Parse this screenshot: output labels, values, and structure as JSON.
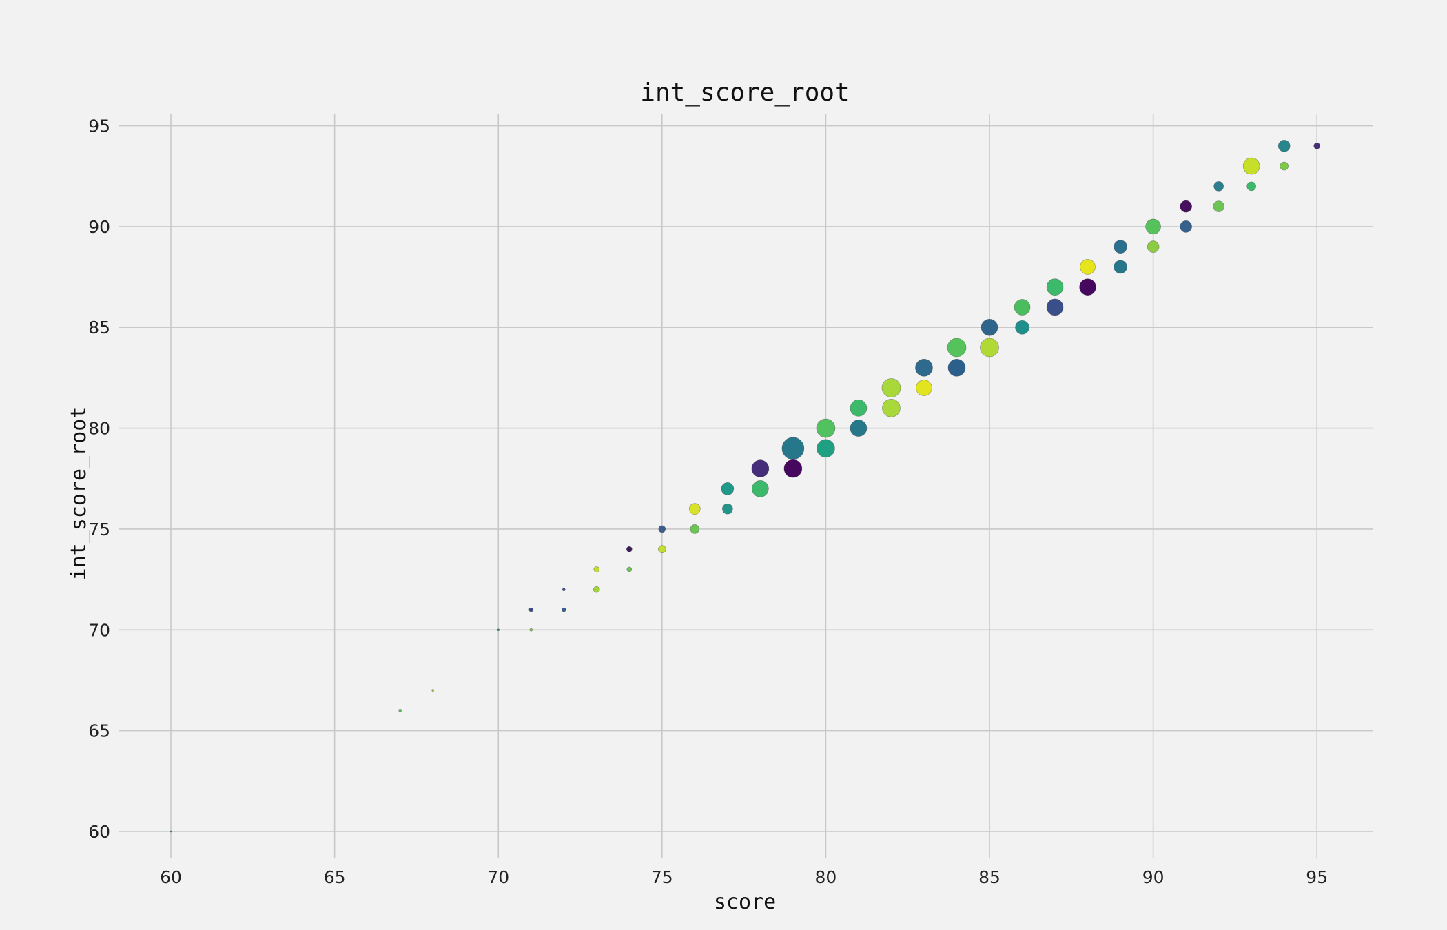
{
  "chart_data": {
    "type": "scatter",
    "title": "int_score_root",
    "xlabel": "score",
    "ylabel": "int_score_root",
    "xlim": [
      58.4,
      96.7
    ],
    "ylim": [
      58.7,
      95.6
    ],
    "xticks": [
      60,
      65,
      70,
      75,
      80,
      85,
      90,
      95
    ],
    "yticks": [
      60,
      65,
      70,
      75,
      80,
      85,
      90,
      95
    ],
    "grid": true,
    "legend": "none",
    "points": [
      {
        "x": 60,
        "y": 60,
        "size": 1,
        "color": "#2a9a82"
      },
      {
        "x": 67,
        "y": 66,
        "size": 2,
        "color": "#5cc05c"
      },
      {
        "x": 68,
        "y": 67,
        "size": 1.5,
        "color": "#a0d43c"
      },
      {
        "x": 70,
        "y": 70,
        "size": 1.5,
        "color": "#2a9a82"
      },
      {
        "x": 71,
        "y": 71,
        "size": 3,
        "color": "#3b4e8a"
      },
      {
        "x": 71,
        "y": 70,
        "size": 2,
        "color": "#7ccb48"
      },
      {
        "x": 72,
        "y": 72,
        "size": 2,
        "color": "#3b4e8a"
      },
      {
        "x": 72,
        "y": 71,
        "size": 3,
        "color": "#3b5f8a"
      },
      {
        "x": 73,
        "y": 73,
        "size": 4,
        "color": "#c2df30"
      },
      {
        "x": 73,
        "y": 72,
        "size": 4.5,
        "color": "#a0d43c"
      },
      {
        "x": 74,
        "y": 74,
        "size": 4,
        "color": "#3f1a5c"
      },
      {
        "x": 74,
        "y": 73,
        "size": 3.5,
        "color": "#6cc454"
      },
      {
        "x": 75,
        "y": 75,
        "size": 5,
        "color": "#3b5f8a"
      },
      {
        "x": 75,
        "y": 74,
        "size": 5.5,
        "color": "#c2df30"
      },
      {
        "x": 76,
        "y": 76,
        "size": 8,
        "color": "#d8e22a"
      },
      {
        "x": 76,
        "y": 75,
        "size": 6.5,
        "color": "#6cc454"
      },
      {
        "x": 77,
        "y": 77,
        "size": 9,
        "color": "#1f9a8a"
      },
      {
        "x": 77,
        "y": 76,
        "size": 7.5,
        "color": "#23948a"
      },
      {
        "x": 78,
        "y": 78,
        "size": 12.5,
        "color": "#462d7a"
      },
      {
        "x": 78,
        "y": 77,
        "size": 12,
        "color": "#3cb96a"
      },
      {
        "x": 79,
        "y": 79,
        "size": 16,
        "color": "#26778a"
      },
      {
        "x": 79,
        "y": 78,
        "size": 13,
        "color": "#45085e"
      },
      {
        "x": 80,
        "y": 80,
        "size": 13.5,
        "color": "#52c260"
      },
      {
        "x": 80,
        "y": 79,
        "size": 13,
        "color": "#1ea183"
      },
      {
        "x": 81,
        "y": 81,
        "size": 12,
        "color": "#3cb96a"
      },
      {
        "x": 81,
        "y": 80,
        "size": 12,
        "color": "#26778a"
      },
      {
        "x": 82,
        "y": 82,
        "size": 13.5,
        "color": "#a8d83a"
      },
      {
        "x": 82,
        "y": 81,
        "size": 13,
        "color": "#a8d83a"
      },
      {
        "x": 83,
        "y": 83,
        "size": 12.5,
        "color": "#2d6a8e"
      },
      {
        "x": 83,
        "y": 82,
        "size": 11.5,
        "color": "#e2e41e"
      },
      {
        "x": 84,
        "y": 84,
        "size": 13.5,
        "color": "#56c25c"
      },
      {
        "x": 84,
        "y": 83,
        "size": 12.5,
        "color": "#2d5f8c"
      },
      {
        "x": 85,
        "y": 85,
        "size": 12,
        "color": "#2f658c"
      },
      {
        "x": 85,
        "y": 84,
        "size": 13.5,
        "color": "#b0d935"
      },
      {
        "x": 86,
        "y": 86,
        "size": 11.5,
        "color": "#4cbd5e"
      },
      {
        "x": 86,
        "y": 85,
        "size": 10,
        "color": "#208f8c"
      },
      {
        "x": 87,
        "y": 87,
        "size": 12,
        "color": "#3cb96a"
      },
      {
        "x": 87,
        "y": 86,
        "size": 12,
        "color": "#3a4f8a"
      },
      {
        "x": 88,
        "y": 88,
        "size": 11,
        "color": "#e6e41a"
      },
      {
        "x": 88,
        "y": 87,
        "size": 12,
        "color": "#45085e"
      },
      {
        "x": 89,
        "y": 89,
        "size": 9.5,
        "color": "#2b6f8e"
      },
      {
        "x": 89,
        "y": 88,
        "size": 9.5,
        "color": "#26778a"
      },
      {
        "x": 90,
        "y": 90,
        "size": 11,
        "color": "#56c25c"
      },
      {
        "x": 90,
        "y": 89,
        "size": 8.5,
        "color": "#8ccc42"
      },
      {
        "x": 91,
        "y": 91,
        "size": 8.5,
        "color": "#46105f"
      },
      {
        "x": 91,
        "y": 90,
        "size": 8.5,
        "color": "#35618c"
      },
      {
        "x": 92,
        "y": 92,
        "size": 7,
        "color": "#2b7f8e"
      },
      {
        "x": 92,
        "y": 91,
        "size": 8,
        "color": "#6cc454"
      },
      {
        "x": 93,
        "y": 93,
        "size": 12,
        "color": "#c8df2a"
      },
      {
        "x": 93,
        "y": 92,
        "size": 6.5,
        "color": "#3cb96a"
      },
      {
        "x": 94,
        "y": 94,
        "size": 8.5,
        "color": "#26868c"
      },
      {
        "x": 94,
        "y": 93,
        "size": 6,
        "color": "#7ccb48"
      },
      {
        "x": 95,
        "y": 94,
        "size": 4.5,
        "color": "#472d7a"
      }
    ]
  }
}
